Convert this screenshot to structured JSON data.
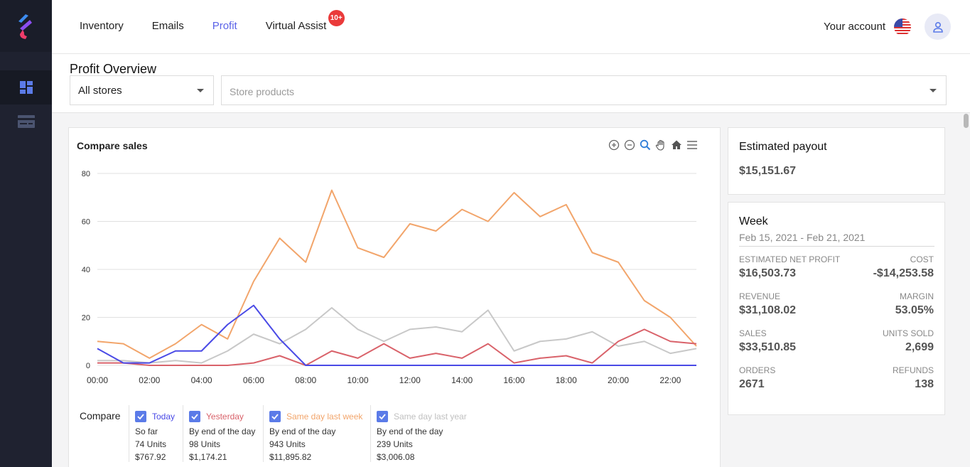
{
  "nav": {
    "items": [
      "Inventory",
      "Emails",
      "Profit",
      "Virtual Assist"
    ],
    "active": "Profit",
    "badge": "10+"
  },
  "account": {
    "label": "Your account"
  },
  "header": {
    "title": "Profit Overview",
    "store_select": "All stores",
    "products_placeholder": "Store products"
  },
  "chart": {
    "title": "Compare sales"
  },
  "chart_data": {
    "type": "line",
    "x": [
      0,
      1,
      2,
      3,
      4,
      5,
      6,
      7,
      8,
      9,
      10,
      11,
      12,
      13,
      14,
      15,
      16,
      17,
      18,
      19,
      20,
      21,
      22,
      23
    ],
    "xticks": [
      "00:00",
      "02:00",
      "04:00",
      "06:00",
      "08:00",
      "10:00",
      "12:00",
      "14:00",
      "16:00",
      "18:00",
      "20:00",
      "22:00"
    ],
    "yticks": [
      0,
      20,
      40,
      60,
      80
    ],
    "ylim": [
      0,
      80
    ],
    "grid": true,
    "series": [
      {
        "name": "Today",
        "color": "#4a4ae6",
        "values": [
          7,
          1,
          1,
          6,
          6,
          17,
          25,
          11,
          0,
          0,
          0,
          0,
          0,
          0,
          0,
          0,
          0,
          0,
          0,
          0,
          0,
          0,
          0,
          0
        ]
      },
      {
        "name": "Yesterday",
        "color": "#d9626a",
        "values": [
          1,
          1,
          0,
          0,
          0,
          0,
          1,
          4,
          0,
          6,
          3,
          9,
          3,
          5,
          3,
          9,
          1,
          3,
          4,
          1,
          10,
          15,
          10,
          9
        ]
      },
      {
        "name": "Same day last week",
        "color": "#f2a56b",
        "values": [
          10,
          9,
          3,
          9,
          17,
          11,
          35,
          53,
          43,
          73,
          49,
          45,
          59,
          56,
          65,
          60,
          72,
          62,
          67,
          47,
          43,
          27,
          20,
          8
        ]
      },
      {
        "name": "Same day last year",
        "color": "#c8c8c8",
        "values": [
          2,
          2,
          1,
          2,
          1,
          6,
          13,
          9,
          15,
          24,
          15,
          10,
          15,
          16,
          14,
          23,
          6,
          10,
          11,
          14,
          8,
          10,
          5,
          7
        ]
      }
    ]
  },
  "legend": {
    "label": "Compare",
    "items": [
      {
        "name": "Today",
        "color": "#4a4ae6",
        "l1": "So far",
        "l2": "74 Units",
        "l3": "$767.92"
      },
      {
        "name": "Yesterday",
        "color": "#d9626a",
        "l1": "By end of the day",
        "l2": "98 Units",
        "l3": "$1,174.21"
      },
      {
        "name": "Same day last week",
        "color": "#f2a56b",
        "l1": "By end of the day",
        "l2": "943 Units",
        "l3": "$11,895.82"
      },
      {
        "name": "Same day last year",
        "color": "#c0c0c0",
        "l1": "By end of the day",
        "l2": "239 Units",
        "l3": "$3,006.08"
      }
    ]
  },
  "payout": {
    "title": "Estimated payout",
    "value": "$15,151.67"
  },
  "week": {
    "title": "Week",
    "range": "Feb 15, 2021 - Feb 21, 2021",
    "stats": {
      "net_profit_label": "ESTIMATED NET PROFIT",
      "net_profit": "$16,503.73",
      "cost_label": "COST",
      "cost": "-$14,253.58",
      "revenue_label": "REVENUE",
      "revenue": "$31,108.02",
      "margin_label": "MARGIN",
      "margin": "53.05%",
      "sales_label": "SALES",
      "sales": "$33,510.85",
      "units_label": "UNITS SOLD",
      "units": "2,699",
      "orders_label": "ORDERS",
      "orders": "2671",
      "refunds_label": "REFUNDS",
      "refunds": "138"
    }
  }
}
